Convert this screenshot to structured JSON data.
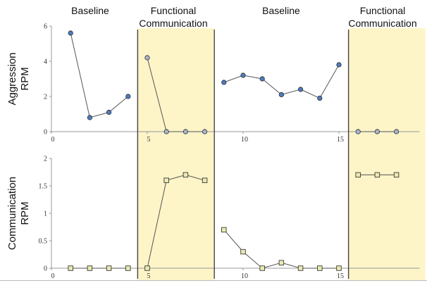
{
  "chart_data": {
    "type": "line",
    "title": "",
    "phases": [
      {
        "label": [
          "Baseline"
        ],
        "range": [
          0.5,
          4.5
        ],
        "shaded": false
      },
      {
        "label": [
          "Functional",
          "Communication"
        ],
        "range": [
          4.5,
          8.5
        ],
        "shaded": true
      },
      {
        "label": [
          "Baseline"
        ],
        "range": [
          8.5,
          15.5
        ],
        "shaded": false
      },
      {
        "label": [
          "Functional",
          "Communication"
        ],
        "range": [
          15.5,
          19.5
        ],
        "shaded": true
      }
    ],
    "phase_lines": [
      4.5,
      8.5,
      15.5
    ],
    "colors": {
      "phase_shade": "#fdf4c8",
      "top_marker_fill": "#4d7bc0",
      "top_marker_fill_treatment": "#a8b6ce",
      "bottom_marker_fill": "#eaeab0",
      "line": "#555555",
      "axis": "#999999",
      "phase_line": "#444444"
    },
    "panels": [
      {
        "ylabel": [
          "Aggression",
          "RPM"
        ],
        "marker": "circle",
        "ylim": [
          0,
          6
        ],
        "yticks": [
          0,
          2,
          4,
          6
        ],
        "ytick_labels": [
          "0",
          "2",
          "4",
          "6"
        ],
        "xlim": [
          0,
          19.5
        ],
        "xticks": [
          0,
          5,
          10,
          15
        ],
        "xtick_labels": [
          "0",
          "5",
          "10",
          "15"
        ],
        "series": [
          {
            "x": [
              1,
              2,
              3,
              4
            ],
            "y": [
              5.6,
              0.8,
              1.1,
              2.0
            ],
            "treatment": false
          },
          {
            "x": [
              5,
              6,
              7,
              8
            ],
            "y": [
              4.2,
              0,
              0,
              0
            ],
            "treatment": true
          },
          {
            "x": [
              9,
              10,
              11,
              12,
              13,
              14,
              15
            ],
            "y": [
              2.8,
              3.2,
              3.0,
              2.1,
              2.4,
              1.9,
              3.8
            ],
            "treatment": false
          },
          {
            "x": [
              16,
              17,
              18
            ],
            "y": [
              0,
              0,
              0
            ],
            "treatment": true
          }
        ]
      },
      {
        "ylabel": [
          "Communication",
          "RPM"
        ],
        "marker": "square",
        "ylim": [
          0,
          2
        ],
        "yticks": [
          0,
          0.5,
          1,
          1.5,
          2
        ],
        "ytick_labels": [
          "0",
          "0.5",
          "1",
          "1.5",
          "2"
        ],
        "xlim": [
          0,
          19.5
        ],
        "xticks": [
          0,
          5,
          10,
          15
        ],
        "xtick_labels": [
          "0",
          "5",
          "10",
          "15"
        ],
        "series": [
          {
            "x": [
              1,
              2,
              3,
              4
            ],
            "y": [
              0,
              0,
              0,
              0
            ],
            "treatment": false
          },
          {
            "x": [
              5,
              6,
              7,
              8
            ],
            "y": [
              0,
              1.6,
              1.7,
              1.6
            ],
            "treatment": true
          },
          {
            "x": [
              9,
              10,
              11,
              12,
              13,
              14,
              15
            ],
            "y": [
              0.7,
              0.3,
              0,
              0.1,
              0,
              0,
              0
            ],
            "treatment": false
          },
          {
            "x": [
              16,
              17,
              18
            ],
            "y": [
              1.7,
              1.7,
              1.7
            ],
            "treatment": true
          }
        ]
      }
    ]
  }
}
